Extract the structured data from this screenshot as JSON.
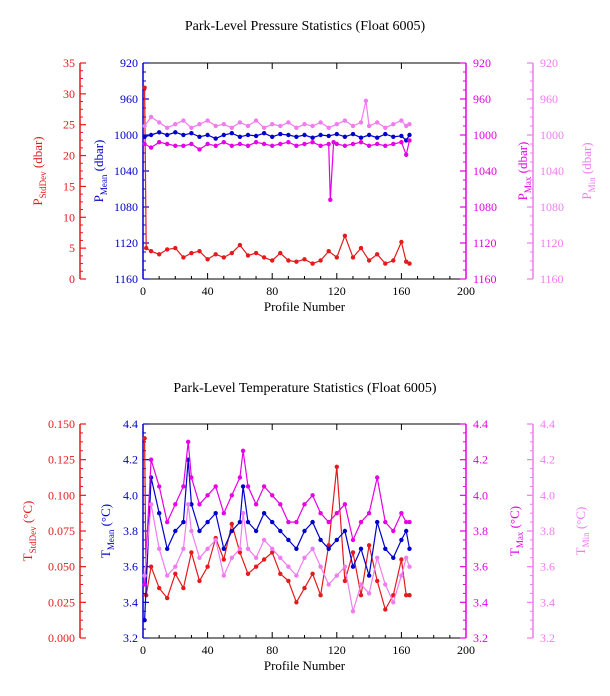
{
  "colors": {
    "stddev": "#e41a1c",
    "mean": "#0000cc",
    "max": "#e600e6",
    "min": "#f07cf0",
    "axis": "#000000"
  },
  "chart_data": [
    {
      "type": "line",
      "title": "Park-Level Pressure Statistics (Float 6005)",
      "xlabel": "Profile Number",
      "xlim": [
        0,
        200
      ],
      "xticks": [
        0,
        40,
        80,
        120,
        160,
        200
      ],
      "axes": [
        {
          "id": "stddev",
          "label_main": "P",
          "label_sub": "StdDev",
          "label_unit": " (dbar)",
          "ylim": [
            0,
            35
          ],
          "ticks": [
            0,
            5,
            10,
            15,
            20,
            25,
            30,
            35
          ],
          "inverted": false,
          "color_key": "stddev"
        },
        {
          "id": "mean",
          "label_main": "P",
          "label_sub": "Mean",
          "label_unit": " (dbar)",
          "ylim": [
            1160,
            920
          ],
          "ticks": [
            920,
            960,
            1000,
            1040,
            1080,
            1120,
            1160
          ],
          "inverted": true,
          "color_key": "mean"
        },
        {
          "id": "max",
          "label_main": "P",
          "label_sub": "Max",
          "label_unit": " (dbar)",
          "ylim": [
            1160,
            920
          ],
          "ticks": [
            920,
            960,
            1000,
            1040,
            1080,
            1120,
            1160
          ],
          "inverted": true,
          "color_key": "max"
        },
        {
          "id": "min",
          "label_main": "P",
          "label_sub": "Min",
          "label_unit": " (dbar)",
          "ylim": [
            1160,
            920
          ],
          "ticks": [
            920,
            960,
            1000,
            1040,
            1080,
            1120,
            1160
          ],
          "inverted": true,
          "color_key": "min"
        }
      ],
      "series": [
        {
          "axis": "stddev",
          "x": [
            1,
            2,
            5,
            10,
            15,
            20,
            25,
            30,
            35,
            40,
            45,
            50,
            55,
            60,
            65,
            70,
            75,
            80,
            85,
            90,
            95,
            100,
            105,
            110,
            115,
            120,
            125,
            130,
            135,
            140,
            145,
            150,
            155,
            160,
            163,
            165
          ],
          "values": [
            31,
            5,
            4.5,
            4,
            4.8,
            5,
            3.5,
            4.2,
            4.5,
            3.2,
            4,
            3.5,
            4.2,
            5.5,
            3.8,
            4.2,
            3.5,
            3,
            4.2,
            3,
            2.8,
            3.2,
            2.5,
            3,
            4.5,
            3.5,
            7,
            3.5,
            5,
            3,
            4,
            2.5,
            3,
            6,
            2.8,
            2.5
          ]
        },
        {
          "axis": "mean",
          "x": [
            1,
            5,
            10,
            15,
            20,
            25,
            30,
            35,
            40,
            45,
            50,
            55,
            60,
            65,
            70,
            75,
            80,
            85,
            90,
            95,
            100,
            105,
            110,
            115,
            120,
            125,
            130,
            135,
            140,
            145,
            150,
            155,
            160,
            163,
            165
          ],
          "values": [
            1002,
            1000,
            997,
            1000,
            997,
            1000,
            998,
            1002,
            1000,
            1004,
            1000,
            998,
            1002,
            1000,
            1001,
            998,
            1002,
            999,
            1000,
            1002,
            1000,
            1003,
            1000,
            1001,
            999,
            1002,
            999,
            1003,
            1000,
            1003,
            999,
            1002,
            1001,
            1006,
            1000
          ]
        },
        {
          "axis": "max",
          "x": [
            1,
            5,
            10,
            15,
            20,
            25,
            30,
            35,
            40,
            45,
            50,
            55,
            60,
            65,
            70,
            75,
            80,
            85,
            90,
            95,
            100,
            105,
            110,
            115,
            116,
            118,
            120,
            125,
            130,
            135,
            140,
            145,
            150,
            155,
            160,
            163,
            165
          ],
          "values": [
            1010,
            1014,
            1008,
            1010,
            1012,
            1012,
            1010,
            1016,
            1010,
            1012,
            1008,
            1012,
            1010,
            1012,
            1008,
            1010,
            1012,
            1010,
            1008,
            1012,
            1010,
            1008,
            1012,
            1010,
            1072,
            1008,
            1010,
            1012,
            1010,
            1008,
            1012,
            1010,
            1012,
            1010,
            1008,
            1022,
            1006
          ]
        },
        {
          "axis": "min",
          "x": [
            1,
            5,
            10,
            15,
            20,
            25,
            30,
            35,
            40,
            45,
            50,
            55,
            60,
            65,
            70,
            75,
            80,
            85,
            90,
            95,
            100,
            105,
            110,
            115,
            120,
            125,
            130,
            135,
            138,
            140,
            145,
            150,
            155,
            160,
            163,
            165
          ],
          "values": [
            990,
            980,
            986,
            992,
            988,
            984,
            992,
            988,
            984,
            990,
            988,
            992,
            986,
            990,
            984,
            992,
            988,
            990,
            986,
            992,
            988,
            990,
            986,
            992,
            988,
            984,
            990,
            986,
            962,
            990,
            986,
            992,
            988,
            984,
            990,
            988
          ]
        }
      ]
    },
    {
      "type": "line",
      "title": "Park-Level Temperature Statistics (Float 6005)",
      "xlabel": "Profile Number",
      "xlim": [
        0,
        200
      ],
      "xticks": [
        0,
        40,
        80,
        120,
        160,
        200
      ],
      "axes": [
        {
          "id": "stddev",
          "label_main": "T",
          "label_sub": "StdDev",
          "label_unit": " (°C)",
          "ylim": [
            0,
            0.15
          ],
          "ticks": [
            0,
            0.025,
            0.05,
            0.075,
            0.1,
            0.125,
            0.15
          ],
          "tick_labels": [
            "0.000",
            "0.025",
            "0.050",
            "0.075",
            "0.100",
            "0.125",
            "0.150"
          ],
          "inverted": false,
          "color_key": "stddev"
        },
        {
          "id": "mean",
          "label_main": "T",
          "label_sub": "Mean",
          "label_unit": " (°C)",
          "ylim": [
            3.2,
            4.4
          ],
          "ticks": [
            3.2,
            3.4,
            3.6,
            3.8,
            4.0,
            4.2,
            4.4
          ],
          "tick_labels": [
            "3.2",
            "3.4",
            "3.6",
            "3.8",
            "4.0",
            "4.2",
            "4.4"
          ],
          "inverted": false,
          "color_key": "mean"
        },
        {
          "id": "max",
          "label_main": "T",
          "label_sub": "Max",
          "label_unit": " (°C)",
          "ylim": [
            3.2,
            4.4
          ],
          "ticks": [
            3.2,
            3.4,
            3.6,
            3.8,
            4.0,
            4.2,
            4.4
          ],
          "tick_labels": [
            "3.2",
            "3.4",
            "3.6",
            "3.8",
            "4.0",
            "4.2",
            "4.4"
          ],
          "inverted": false,
          "color_key": "max"
        },
        {
          "id": "min",
          "label_main": "T",
          "label_sub": "Min",
          "label_unit": " (°C)",
          "ylim": [
            3.2,
            4.4
          ],
          "ticks": [
            3.2,
            3.4,
            3.6,
            3.8,
            4.0,
            4.2,
            4.4
          ],
          "tick_labels": [
            "3.2",
            "3.4",
            "3.6",
            "3.8",
            "4.0",
            "4.2",
            "4.4"
          ],
          "inverted": false,
          "color_key": "min"
        }
      ],
      "series": [
        {
          "axis": "stddev",
          "x": [
            1,
            2,
            5,
            10,
            15,
            20,
            25,
            30,
            35,
            40,
            45,
            50,
            55,
            60,
            65,
            70,
            75,
            80,
            85,
            90,
            95,
            100,
            105,
            110,
            115,
            120,
            125,
            130,
            135,
            140,
            145,
            150,
            155,
            160,
            163,
            165
          ],
          "values": [
            0.14,
            0.03,
            0.05,
            0.035,
            0.028,
            0.045,
            0.035,
            0.06,
            0.04,
            0.05,
            0.07,
            0.055,
            0.08,
            0.06,
            0.045,
            0.05,
            0.055,
            0.06,
            0.045,
            0.04,
            0.025,
            0.035,
            0.045,
            0.03,
            0.065,
            0.12,
            0.04,
            0.06,
            0.03,
            0.065,
            0.04,
            0.02,
            0.03,
            0.055,
            0.03,
            0.03
          ]
        },
        {
          "axis": "mean",
          "x": [
            1,
            5,
            10,
            15,
            20,
            25,
            28,
            30,
            35,
            40,
            45,
            50,
            55,
            60,
            62,
            65,
            70,
            75,
            80,
            85,
            90,
            95,
            100,
            105,
            110,
            115,
            120,
            125,
            130,
            135,
            140,
            145,
            150,
            155,
            160,
            163,
            165
          ],
          "values": [
            3.3,
            4.1,
            3.9,
            3.7,
            3.8,
            3.85,
            4.2,
            3.95,
            3.8,
            3.85,
            3.9,
            3.7,
            3.8,
            3.85,
            4.05,
            3.85,
            3.8,
            3.9,
            3.85,
            3.8,
            3.75,
            3.7,
            3.8,
            3.85,
            3.75,
            3.7,
            3.75,
            3.8,
            3.6,
            3.7,
            3.55,
            3.85,
            3.7,
            3.65,
            3.75,
            3.8,
            3.7
          ]
        },
        {
          "axis": "max",
          "x": [
            1,
            5,
            10,
            15,
            20,
            25,
            28,
            30,
            35,
            40,
            45,
            50,
            55,
            60,
            62,
            65,
            70,
            75,
            80,
            85,
            90,
            95,
            100,
            105,
            110,
            115,
            120,
            125,
            130,
            135,
            140,
            145,
            150,
            155,
            160,
            163,
            165
          ],
          "values": [
            3.5,
            4.2,
            4.05,
            3.85,
            3.95,
            4.05,
            4.3,
            4.1,
            3.95,
            4.0,
            4.05,
            3.9,
            4.0,
            4.1,
            4.25,
            4.05,
            3.95,
            4.05,
            4.0,
            3.95,
            3.85,
            3.85,
            3.95,
            4.0,
            3.9,
            3.85,
            3.9,
            3.95,
            3.75,
            3.85,
            3.9,
            4.1,
            3.85,
            3.8,
            3.9,
            3.85,
            3.85
          ]
        },
        {
          "axis": "min",
          "x": [
            1,
            5,
            10,
            15,
            20,
            25,
            28,
            30,
            35,
            40,
            45,
            50,
            55,
            60,
            62,
            65,
            70,
            75,
            80,
            85,
            90,
            95,
            100,
            105,
            110,
            115,
            120,
            125,
            130,
            135,
            140,
            145,
            150,
            155,
            160,
            163,
            165
          ],
          "values": [
            3.55,
            3.95,
            3.7,
            3.55,
            3.6,
            3.7,
            3.95,
            3.8,
            3.65,
            3.7,
            3.75,
            3.55,
            3.65,
            3.7,
            3.9,
            3.7,
            3.65,
            3.75,
            3.7,
            3.65,
            3.6,
            3.55,
            3.65,
            3.7,
            3.6,
            3.5,
            3.55,
            3.6,
            3.35,
            3.5,
            3.45,
            3.65,
            3.5,
            3.4,
            3.55,
            3.65,
            3.6
          ]
        }
      ]
    }
  ]
}
